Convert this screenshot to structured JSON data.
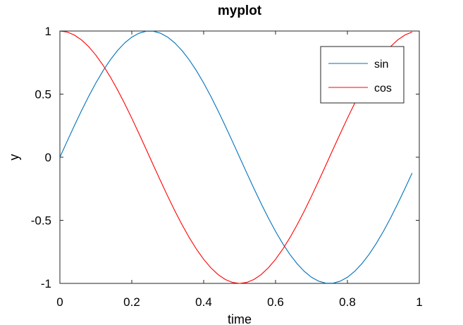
{
  "chart_data": {
    "type": "line",
    "title": "myplot",
    "xlabel": "time",
    "ylabel": "y",
    "xlim": [
      0,
      1
    ],
    "ylim": [
      -1,
      1
    ],
    "xticks": [
      0,
      0.2,
      0.4,
      0.6,
      0.8,
      1
    ],
    "xtick_labels": [
      "0",
      "0.2",
      "0.4",
      "0.6",
      "0.8",
      "1"
    ],
    "yticks": [
      -1,
      -0.5,
      0,
      0.5,
      1
    ],
    "ytick_labels": [
      "-1",
      "-0.5",
      "0",
      "0.5",
      "1"
    ],
    "grid": false,
    "legend_position": "top-right",
    "x": [
      0,
      0.02,
      0.04,
      0.06,
      0.08,
      0.1,
      0.12,
      0.14,
      0.16,
      0.18,
      0.2,
      0.22,
      0.24,
      0.26,
      0.28,
      0.3,
      0.32,
      0.34,
      0.36,
      0.38,
      0.4,
      0.42,
      0.44,
      0.46,
      0.48,
      0.5,
      0.52,
      0.54,
      0.56,
      0.58,
      0.6,
      0.62,
      0.64,
      0.66,
      0.68,
      0.7,
      0.72,
      0.74,
      0.76,
      0.78,
      0.8,
      0.82,
      0.84,
      0.86,
      0.88,
      0.9,
      0.92,
      0.94,
      0.96,
      0.98
    ],
    "series": [
      {
        "name": "sin",
        "color": "#0072bd",
        "values": [
          0,
          0.1253,
          0.2487,
          0.3681,
          0.4818,
          0.5878,
          0.6845,
          0.7705,
          0.8443,
          0.9048,
          0.9511,
          0.9823,
          0.998,
          0.998,
          0.9823,
          0.9511,
          0.9048,
          0.8443,
          0.7705,
          0.6845,
          0.5878,
          0.4818,
          0.3681,
          0.2487,
          0.1253,
          0,
          -0.1253,
          -0.2487,
          -0.3681,
          -0.4818,
          -0.5878,
          -0.6845,
          -0.7705,
          -0.8443,
          -0.9048,
          -0.9511,
          -0.9823,
          -0.998,
          -0.998,
          -0.9823,
          -0.9511,
          -0.9048,
          -0.8443,
          -0.7705,
          -0.6845,
          -0.5878,
          -0.4818,
          -0.3681,
          -0.2487,
          -0.1253
        ]
      },
      {
        "name": "cos",
        "color": "#ff0000",
        "values": [
          1,
          0.9921,
          0.9686,
          0.9298,
          0.8763,
          0.809,
          0.729,
          0.6374,
          0.5358,
          0.4258,
          0.309,
          0.1874,
          0.0628,
          -0.0628,
          -0.1874,
          -0.309,
          -0.4258,
          -0.5358,
          -0.6374,
          -0.729,
          -0.809,
          -0.8763,
          -0.9298,
          -0.9686,
          -0.9921,
          -1,
          -0.9921,
          -0.9686,
          -0.9298,
          -0.8763,
          -0.809,
          -0.729,
          -0.6374,
          -0.5358,
          -0.4258,
          -0.309,
          -0.1874,
          -0.0628,
          0.0628,
          0.1874,
          0.309,
          0.4258,
          0.5358,
          0.6374,
          0.729,
          0.809,
          0.8763,
          0.9298,
          0.9686,
          0.9921
        ]
      }
    ]
  }
}
